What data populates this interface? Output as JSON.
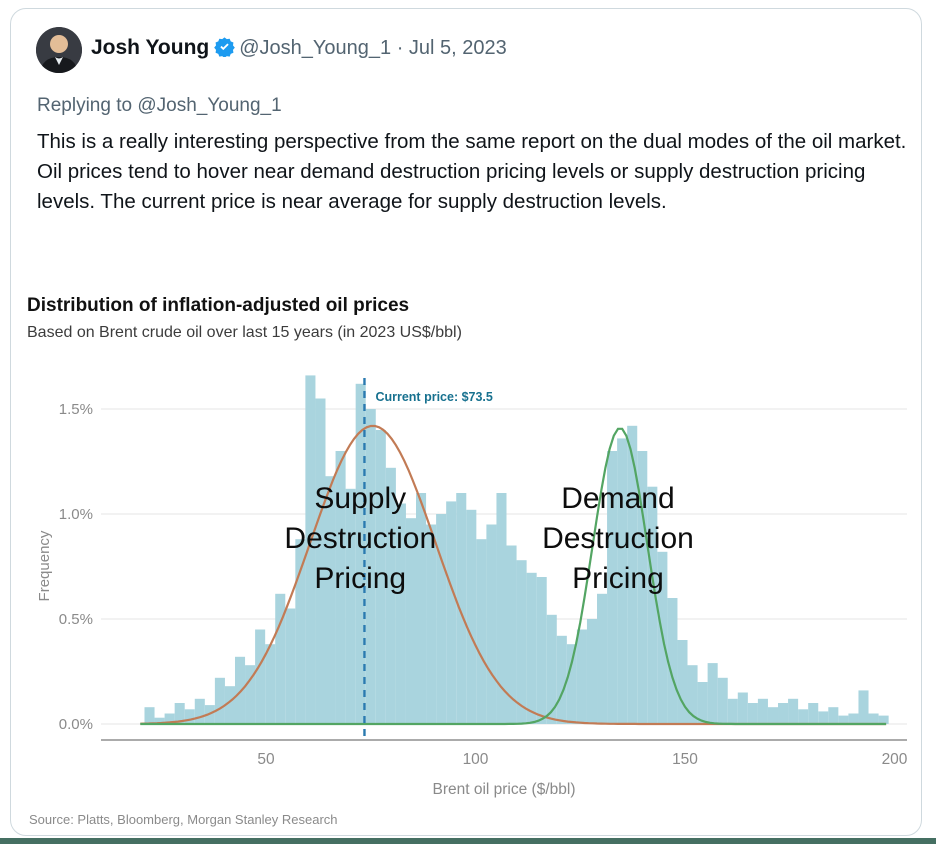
{
  "tweet": {
    "author_name": "Josh Young",
    "handle_line": "@Josh_Young_1 · Jul 5, 2023",
    "replying_to": "Replying to @Josh_Young_1",
    "body": "This is a really interesting perspective from the same report on the dual modes of the oil market. Oil prices tend to hover near demand destruction pricing levels or supply destruction pricing levels. The current price is near average for supply destruction levels.",
    "source_note": "Source: Platts, Bloomberg, Morgan Stanley Research",
    "verified_badge_color": "#1d9bf0",
    "text_color": "#0f1419",
    "muted_color": "#536471"
  },
  "chart_data": {
    "type": "bar",
    "subtype": "histogram-with-fitted-curves",
    "title": "Distribution of inflation-adjusted oil prices",
    "subtitle": "Based on Brent crude oil over last 15 years (in 2023 US$/bbl)",
    "xlabel": "Brent oil price ($/bbl)",
    "ylabel": "Frequency",
    "x_ticks": [
      50,
      100,
      150,
      200
    ],
    "y_tick_labels": [
      "0.0%",
      "0.5%",
      "1.0%",
      "1.5%"
    ],
    "y_tick_values": [
      0,
      0.5,
      1.0,
      1.5
    ],
    "xlim": [
      10,
      203
    ],
    "ylim_pct": [
      0,
      1.75
    ],
    "grid": true,
    "legend_position": "none",
    "histogram": {
      "start_price": 21,
      "bin_width": 2.4,
      "color": "#a9d4de",
      "heights_pct": [
        0.08,
        0.03,
        0.05,
        0.1,
        0.07,
        0.12,
        0.09,
        0.22,
        0.18,
        0.32,
        0.28,
        0.45,
        0.38,
        0.62,
        0.55,
        0.88,
        1.66,
        1.55,
        1.18,
        1.3,
        1.12,
        1.62,
        1.5,
        1.4,
        1.22,
        1.05,
        0.98,
        1.1,
        0.95,
        1.0,
        1.06,
        1.1,
        1.02,
        0.88,
        0.95,
        1.1,
        0.85,
        0.78,
        0.72,
        0.7,
        0.52,
        0.42,
        0.38,
        0.45,
        0.5,
        0.62,
        1.3,
        1.36,
        1.42,
        1.3,
        1.13,
        0.82,
        0.6,
        0.4,
        0.28,
        0.2,
        0.29,
        0.22,
        0.12,
        0.15,
        0.1,
        0.12,
        0.08,
        0.1,
        0.12,
        0.07,
        0.1,
        0.06,
        0.08,
        0.04,
        0.05,
        0.16,
        0.05,
        0.04
      ]
    },
    "curves": [
      {
        "name": "Supply Destruction Pricing",
        "fit": "normal",
        "mean": 75.5,
        "sd": 15.0,
        "peak_pct": 1.42,
        "color": "#c27b55"
      },
      {
        "name": "Demand Destruction Pricing",
        "fit": "normal",
        "mean": 134.5,
        "sd": 6.5,
        "peak_pct": 1.41,
        "color": "#53a563"
      }
    ],
    "current_price": {
      "value": 73.5,
      "label": "Current price: $73.5",
      "line_color": "#2a7ab0",
      "label_color": "#17718f"
    },
    "annotations": [
      {
        "lines": [
          "Supply",
          "Destruction",
          "Pricing"
        ],
        "x_price": 72.5,
        "color": "#0d0d0d"
      },
      {
        "lines": [
          "Demand",
          "Destruction",
          "Pricing"
        ],
        "x_price": 134.0,
        "color": "#0d0d0d"
      }
    ],
    "axis_color": "#8f8f8f",
    "tick_label_color": "#8a8a8a",
    "gridline_color": "#e4e4e4"
  }
}
